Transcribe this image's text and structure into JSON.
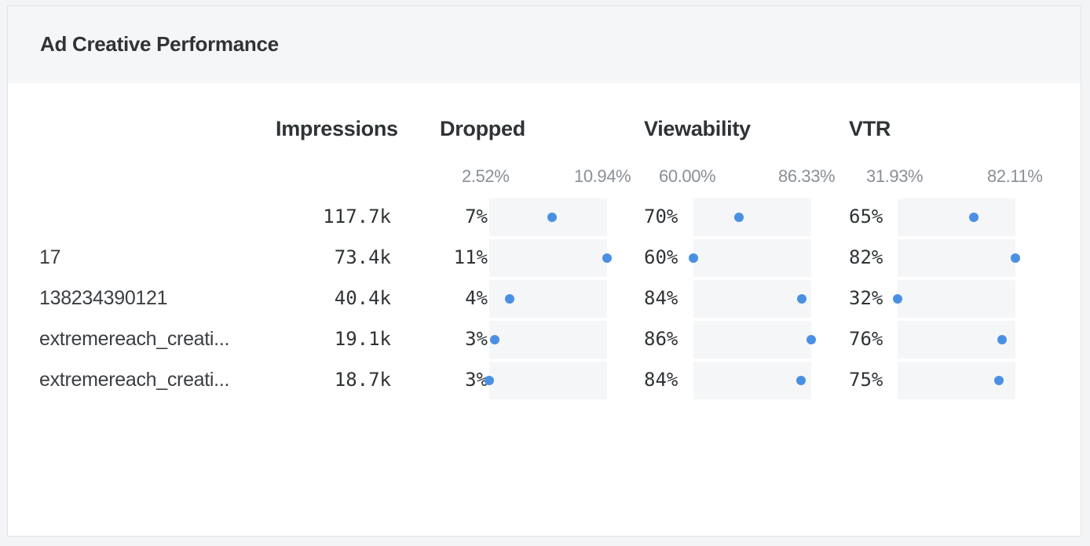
{
  "title": "Ad Creative Performance",
  "columns": {
    "impressions": "Impressions",
    "dropped": "Dropped",
    "viewability": "Viewability",
    "vtr": "VTR"
  },
  "ranges": {
    "dropped": {
      "min_label": "2.52%",
      "max_label": "10.94%",
      "min": 2.52,
      "max": 10.94
    },
    "viewability": {
      "min_label": "60.00%",
      "max_label": "86.33%",
      "min": 60.0,
      "max": 86.33
    },
    "vtr": {
      "min_label": "31.93%",
      "max_label": "82.11%",
      "min": 31.93,
      "max": 82.11
    }
  },
  "rows": [
    {
      "label": "",
      "impressions": "117.7k",
      "dropped_label": "7%",
      "dropped": 7.0,
      "viewability_label": "70%",
      "viewability": 70.2,
      "vtr_label": "65%",
      "vtr": 64.5
    },
    {
      "label": "17",
      "impressions": "73.4k",
      "dropped_label": "11%",
      "dropped": 10.94,
      "viewability_label": "60%",
      "viewability": 60.0,
      "vtr_label": "82%",
      "vtr": 82.11
    },
    {
      "label": "138234390121",
      "impressions": "40.4k",
      "dropped_label": "4%",
      "dropped": 4.0,
      "viewability_label": "84%",
      "viewability": 84.3,
      "vtr_label": "32%",
      "vtr": 31.93
    },
    {
      "label": "extremereach_creati...",
      "impressions": "19.1k",
      "dropped_label": "3%",
      "dropped": 2.9,
      "viewability_label": "86%",
      "viewability": 86.33,
      "vtr_label": "76%",
      "vtr": 76.3
    },
    {
      "label": "extremereach_creati...",
      "impressions": "18.7k",
      "dropped_label": "3%",
      "dropped": 2.52,
      "viewability_label": "84%",
      "viewability": 84.1,
      "vtr_label": "75%",
      "vtr": 75.2
    }
  ],
  "colors": {
    "dot": "#4a90e2",
    "track": "#f5f6f8"
  }
}
